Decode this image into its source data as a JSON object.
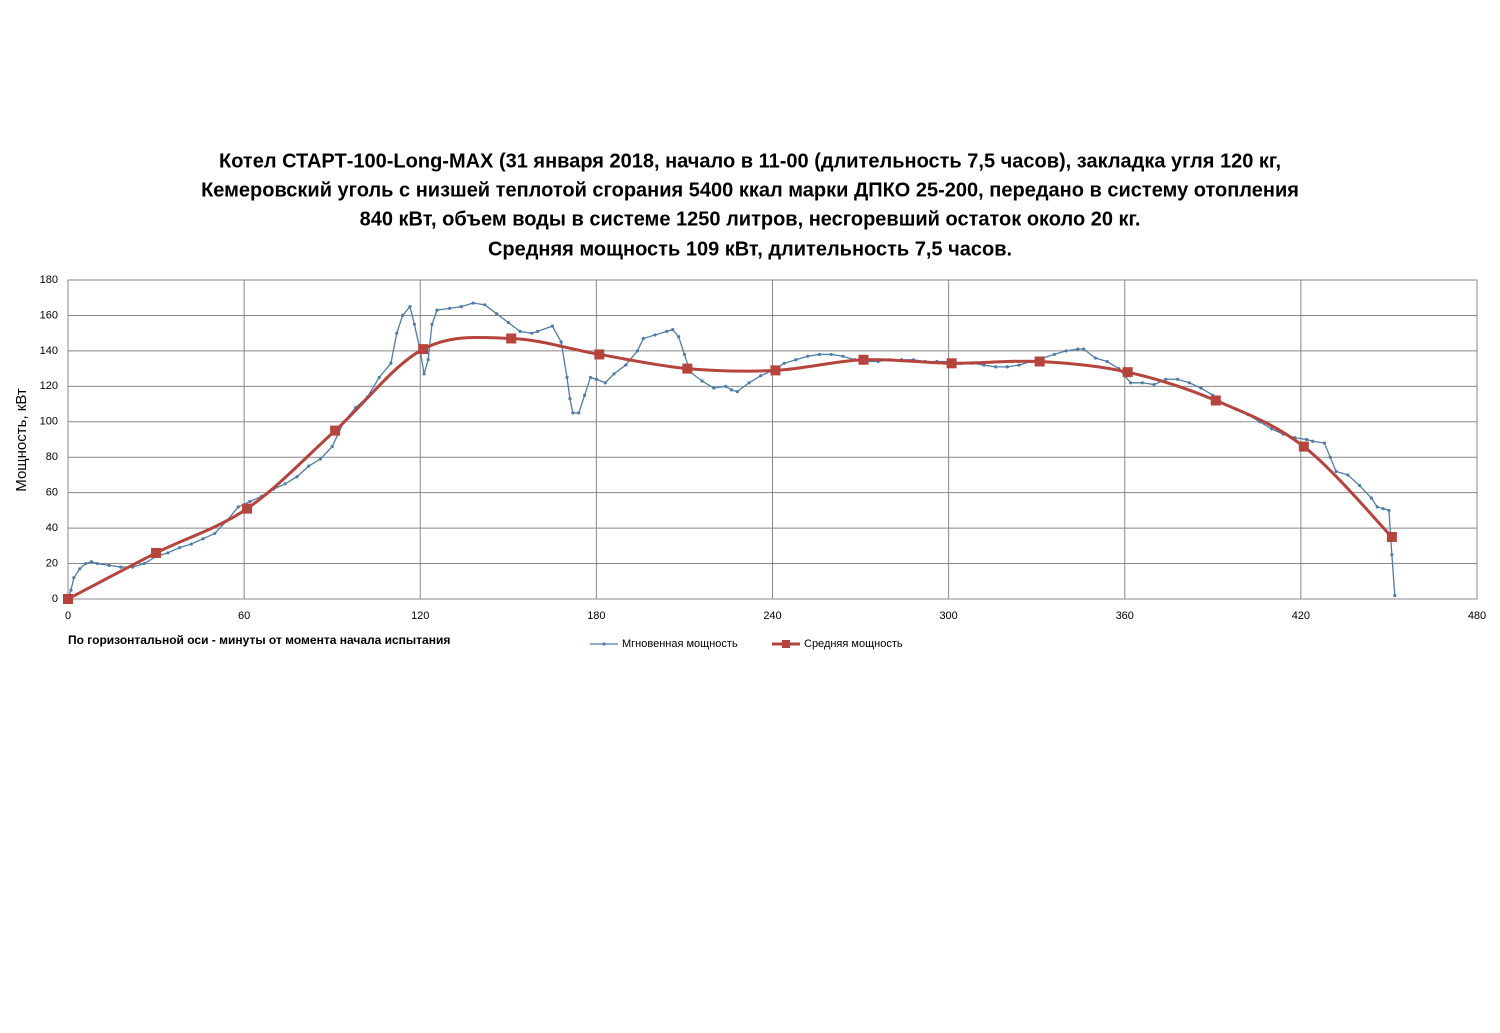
{
  "chart_data": {
    "type": "line",
    "title": [
      "Котел СТАРТ-100-Long-MAX (31 января 2018, начало в 11-00 (длительность 7,5 часов), закладка угля 120 кг,",
      "Кемеровский уголь с низшей теплотой сгорания 5400 ккал марки ДПКО 25-200, передано в систему отопления",
      "840 кВт, объем воды в системе 1250 литров, несгоревший остаток около 20 кг.",
      "Средняя мощность 109 кВт, длительность 7,5 часов."
    ],
    "y_label": "Мощность, кВт",
    "x_note": "По горизонтальной оси - минуты от момента начала испытания",
    "xlim": [
      0,
      480
    ],
    "xticks": [
      0,
      60,
      120,
      180,
      240,
      300,
      360,
      420,
      480
    ],
    "ylim": [
      0,
      180
    ],
    "yticks": [
      0,
      20,
      40,
      60,
      80,
      100,
      120,
      140,
      160,
      180
    ],
    "grid": true,
    "series": [
      {
        "name": "Мгновенная мощность",
        "color": "#4f7ca8",
        "marker": "dot",
        "smooth": false,
        "x": [
          0,
          1,
          2,
          4,
          6,
          8,
          10,
          14,
          18,
          22,
          26,
          30,
          34,
          38,
          42,
          46,
          50,
          54,
          58,
          62,
          66,
          70,
          74,
          78,
          82,
          86,
          90,
          94,
          98,
          102,
          106,
          110,
          112,
          114,
          116.5,
          118,
          120,
          121.3,
          122.7,
          124,
          125.7,
          130,
          134,
          138,
          142,
          146,
          150,
          154,
          158,
          160,
          165,
          168,
          170,
          171,
          172,
          174,
          176,
          178,
          180,
          183,
          186,
          190,
          194,
          196,
          200,
          204,
          206,
          208,
          210,
          212,
          216,
          220,
          224,
          226,
          228,
          232,
          236,
          240,
          244,
          248,
          252,
          256,
          260,
          264,
          268,
          272,
          276,
          280,
          284,
          288,
          292,
          296,
          300,
          304,
          308,
          312,
          316,
          320,
          324,
          328,
          332,
          336,
          340,
          344,
          346,
          350,
          354,
          358,
          362,
          366,
          370,
          374,
          378,
          382,
          386,
          390,
          394,
          398,
          402,
          406,
          410,
          414,
          418,
          422,
          424,
          428,
          430,
          432,
          436,
          440,
          444,
          446,
          448,
          450,
          451,
          452
        ],
        "values": [
          0,
          5,
          12,
          17,
          20,
          21,
          20,
          19,
          18,
          18,
          20,
          24,
          26,
          29,
          31,
          34,
          37,
          44,
          52,
          55,
          58,
          62,
          65,
          69,
          75,
          79,
          86,
          100,
          108,
          114,
          125,
          133,
          150,
          160,
          165,
          155,
          140,
          127,
          135,
          155,
          163,
          164,
          165,
          167,
          166,
          161,
          156,
          151,
          150,
          151,
          154,
          145,
          125,
          113,
          105,
          105,
          115,
          125,
          124,
          122,
          127,
          132,
          140,
          147,
          149,
          151,
          152,
          148,
          138,
          128,
          123,
          119,
          120,
          118,
          117,
          122,
          126,
          129,
          133,
          135,
          137,
          138,
          138,
          137,
          135,
          134,
          134,
          135,
          135,
          135,
          134,
          134,
          134,
          133,
          133,
          132,
          131,
          131,
          132,
          134,
          136,
          138,
          140,
          141,
          141,
          136,
          134,
          130,
          122,
          122,
          121,
          124,
          124,
          122,
          119,
          115,
          110,
          107,
          104,
          100,
          96,
          93,
          91,
          90,
          89,
          88,
          80,
          72,
          70,
          64,
          57,
          52,
          51,
          50,
          25,
          2
        ]
      },
      {
        "name": "Средняя мощность",
        "color": "#b5443c",
        "marker": "square",
        "smooth": true,
        "x": [
          0,
          30,
          61,
          91,
          121,
          151,
          181,
          211,
          241,
          271,
          301,
          331,
          361,
          391,
          421,
          451
        ],
        "values": [
          0,
          26,
          51,
          95,
          141,
          147,
          138,
          130,
          129,
          135,
          133,
          134,
          128,
          112,
          86,
          35
        ]
      }
    ]
  }
}
